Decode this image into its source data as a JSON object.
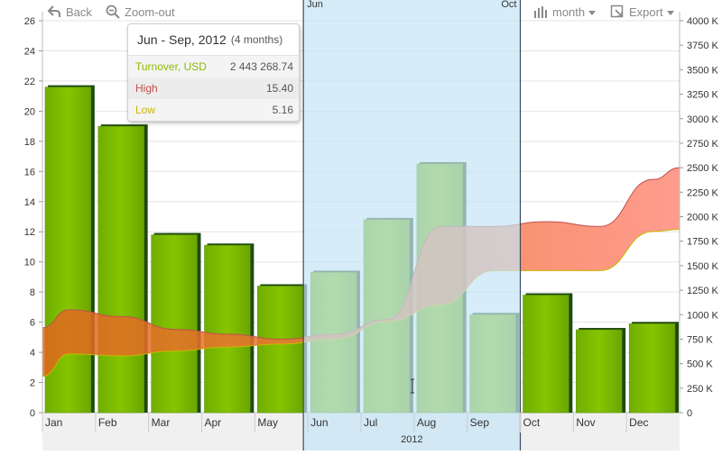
{
  "toolbar": {
    "back_label": "Back",
    "zoom_out_label": "Zoom-out",
    "period_label": "month",
    "export_label": "Export"
  },
  "selection": {
    "start_label": "Jun",
    "end_label": "Oct"
  },
  "tooltip": {
    "title": "Jun - Sep, 2012",
    "subtitle": "(4 months)",
    "rows": [
      {
        "label": "Turnover, USD",
        "value": "2 443 268.74",
        "color": "#8fb800"
      },
      {
        "label": "High",
        "value": "15.40",
        "color": "#c0504d"
      },
      {
        "label": "Low",
        "value": "5.16",
        "color": "#c9b800"
      }
    ]
  },
  "colors": {
    "bar": "#7cb800",
    "bar_shadow": "#1e4a12",
    "range_lower": "#e0681c",
    "range_upper": "#ff8a7a",
    "selection": "#c5e4f5"
  },
  "chart_data": {
    "type": "bar",
    "title": "",
    "categories": [
      "Jan",
      "Feb",
      "Mar",
      "Apr",
      "May",
      "Jun",
      "Jul",
      "Aug",
      "Sep",
      "Oct",
      "Nov",
      "Dec"
    ],
    "x_group_label": "2012",
    "series": [
      {
        "name": "Turnover, USD",
        "axis": "left",
        "values": [
          21.6,
          19.0,
          11.8,
          11.1,
          8.4,
          9.3,
          12.8,
          16.5,
          6.5,
          7.8,
          5.5,
          5.9
        ]
      },
      {
        "name": "High",
        "axis": "right",
        "type": "area-range-upper",
        "values": [
          1050000,
          980000,
          850000,
          800000,
          750000,
          800000,
          950000,
          1900000,
          1900000,
          1950000,
          1900000,
          2380000
        ]
      },
      {
        "name": "Low",
        "axis": "right",
        "type": "area-range-lower",
        "values": [
          600000,
          580000,
          630000,
          670000,
          700000,
          750000,
          930000,
          1100000,
          1450000,
          1450000,
          1450000,
          1850000
        ]
      }
    ],
    "y_left": {
      "min": 0,
      "max": 26,
      "ticks": [
        "0",
        "2",
        "4",
        "6",
        "8",
        "10",
        "12",
        "14",
        "16",
        "18",
        "20",
        "22",
        "24",
        "26"
      ]
    },
    "y_right": {
      "min": 0,
      "max": 4000000,
      "ticks": [
        "0",
        "250 K",
        "500 K",
        "750 K",
        "1000 K",
        "1250 K",
        "1500 K",
        "1750 K",
        "2000 K",
        "2250 K",
        "2500 K",
        "2750 K",
        "3000 K",
        "3250 K",
        "3500 K",
        "3750 K",
        "4000 K"
      ]
    },
    "selected_range": [
      "Jun",
      "Sep"
    ],
    "grid": true,
    "legend": "none"
  }
}
